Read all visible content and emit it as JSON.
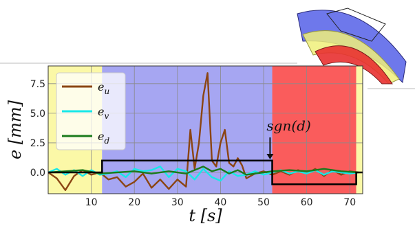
{
  "chart_data": {
    "type": "line",
    "xlabel": "t [s]",
    "ylabel": "e [mm]",
    "xlim": [
      0,
      73
    ],
    "ylim": [
      -1.8,
      9.0
    ],
    "x_ticks": [
      10,
      20,
      30,
      40,
      50,
      60,
      70
    ],
    "y_ticks": [
      0.0,
      2.5,
      5.0,
      7.5
    ],
    "x_tick_labels": [
      "10",
      "20",
      "30",
      "40",
      "50",
      "60",
      "70"
    ],
    "y_tick_labels": [
      "0.0",
      "2.5",
      "5.0",
      "7.5"
    ],
    "grid": true,
    "legend_position": "top-left",
    "background_regions": [
      {
        "x_start": 0,
        "x_end": 12.5,
        "color": "#fbf8a7"
      },
      {
        "x_start": 12.5,
        "x_end": 52,
        "color": "#a6a6f2"
      },
      {
        "x_start": 52,
        "x_end": 71.5,
        "color": "#fa5c5c"
      },
      {
        "x_start": 71.5,
        "x_end": 73,
        "color": "#fbf8a7"
      }
    ],
    "series": [
      {
        "name": "e_u",
        "label_base": "e",
        "label_sub": "u",
        "color": "#8b4513",
        "x": [
          0,
          2,
          4,
          6,
          8,
          10,
          12,
          14,
          16,
          18,
          20,
          22,
          24,
          26,
          28,
          30,
          32,
          33,
          34,
          35,
          36,
          37,
          38,
          39,
          40,
          41,
          42,
          43,
          44,
          45,
          46,
          48,
          50,
          52,
          54,
          56,
          58,
          60,
          62,
          64,
          66,
          68,
          70,
          72
        ],
        "y": [
          0.0,
          -0.5,
          -1.5,
          -0.3,
          0.2,
          -0.2,
          0.0,
          -0.6,
          -0.4,
          -1.2,
          -0.8,
          -0.1,
          -1.3,
          -0.6,
          -1.4,
          -0.6,
          -1.2,
          3.6,
          0.3,
          2.5,
          6.5,
          8.4,
          1.0,
          0.5,
          2.5,
          3.6,
          0.8,
          0.5,
          1.2,
          0.6,
          -0.5,
          -0.1,
          0.1,
          -0.2,
          0.1,
          -0.2,
          0.2,
          -0.1,
          0.3,
          -0.3,
          0.2,
          -0.2,
          0.1,
          0.0
        ]
      },
      {
        "name": "e_v",
        "label_base": "e",
        "label_sub": "v",
        "color": "#18e8e8",
        "x": [
          0,
          2,
          4,
          6,
          8,
          10,
          12,
          14,
          16,
          18,
          20,
          22,
          24,
          26,
          28,
          30,
          32,
          34,
          36,
          38,
          40,
          42,
          44,
          46,
          48,
          50,
          52,
          54,
          56,
          58,
          60,
          62,
          64,
          66,
          68,
          70,
          72
        ],
        "y": [
          0.0,
          0.3,
          -0.2,
          0.2,
          -0.3,
          0.2,
          -0.2,
          -0.1,
          0.1,
          -0.4,
          0.3,
          0.1,
          0.2,
          0.5,
          -0.4,
          0.3,
          0.1,
          -0.6,
          0.3,
          -0.4,
          -0.7,
          0.1,
          -0.3,
          -0.2,
          0.1,
          -0.2,
          0.0,
          0.2,
          -0.1,
          0.1,
          -0.1,
          0.2,
          -0.2,
          0.1,
          0.0,
          -0.1,
          0.0
        ]
      },
      {
        "name": "e_d",
        "label_base": "e",
        "label_sub": "d",
        "color": "#1b7a1b",
        "x": [
          0,
          4,
          8,
          12,
          16,
          20,
          24,
          28,
          32,
          34,
          36,
          38,
          40,
          42,
          44,
          46,
          48,
          50,
          52,
          56,
          60,
          64,
          68,
          72
        ],
        "y": [
          0.0,
          0.1,
          0.2,
          -0.1,
          0.0,
          0.1,
          -0.1,
          0.1,
          -0.1,
          0.2,
          0.5,
          0.1,
          0.3,
          -0.1,
          0.2,
          -0.2,
          -0.1,
          0.0,
          0.1,
          0.2,
          0.1,
          0.3,
          0.1,
          0.0
        ]
      }
    ],
    "step_line": {
      "name": "sgn(d)",
      "color": "#000000",
      "x": [
        0,
        12.5,
        12.5,
        52,
        52,
        71.5,
        71.5,
        73
      ],
      "y": [
        0,
        0,
        1,
        1,
        -1,
        -1,
        0,
        0
      ]
    },
    "annotation": {
      "text": "sgn(d)",
      "arrow_to": [
        51.5,
        1.1
      ]
    }
  }
}
